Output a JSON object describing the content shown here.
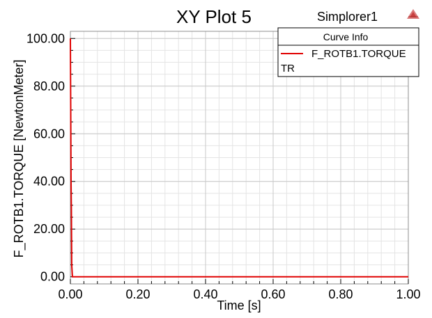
{
  "header": {
    "title": "XY Plot 5",
    "app_name": "Simplorer1",
    "logo_icon": "simplorer-triangle-logo-icon"
  },
  "legend": {
    "title": "Curve Info",
    "entries": [
      {
        "label": "F_ROTB1.TORQUE",
        "sublabel": "TR",
        "color": "#e00000"
      }
    ]
  },
  "chart_data": {
    "type": "line",
    "title": "XY Plot 5",
    "xlabel": "Time [s]",
    "ylabel": "F_ROTB1.TORQUE [NewtonMeter]",
    "xlim": [
      0,
      1
    ],
    "ylim": [
      -3,
      103
    ],
    "x_ticks": [
      "0.00",
      "0.20",
      "0.40",
      "0.60",
      "0.80",
      "1.00"
    ],
    "x_tick_values": [
      0,
      0.2,
      0.4,
      0.6,
      0.8,
      1.0
    ],
    "y_ticks": [
      "0.00",
      "20.00",
      "40.00",
      "60.00",
      "80.00",
      "100.00"
    ],
    "y_tick_values": [
      0,
      20,
      40,
      60,
      80,
      100
    ],
    "grid": true,
    "legend_position": "top-right",
    "series": [
      {
        "name": "F_ROTB1.TORQUE",
        "color": "#e00000",
        "x": [
          0,
          0.0005,
          0.001,
          0.0015,
          0.002,
          0.003,
          0.004,
          0.006,
          1.0
        ],
        "y": [
          100,
          85,
          72,
          55,
          40,
          28,
          5,
          0,
          0
        ]
      }
    ]
  }
}
